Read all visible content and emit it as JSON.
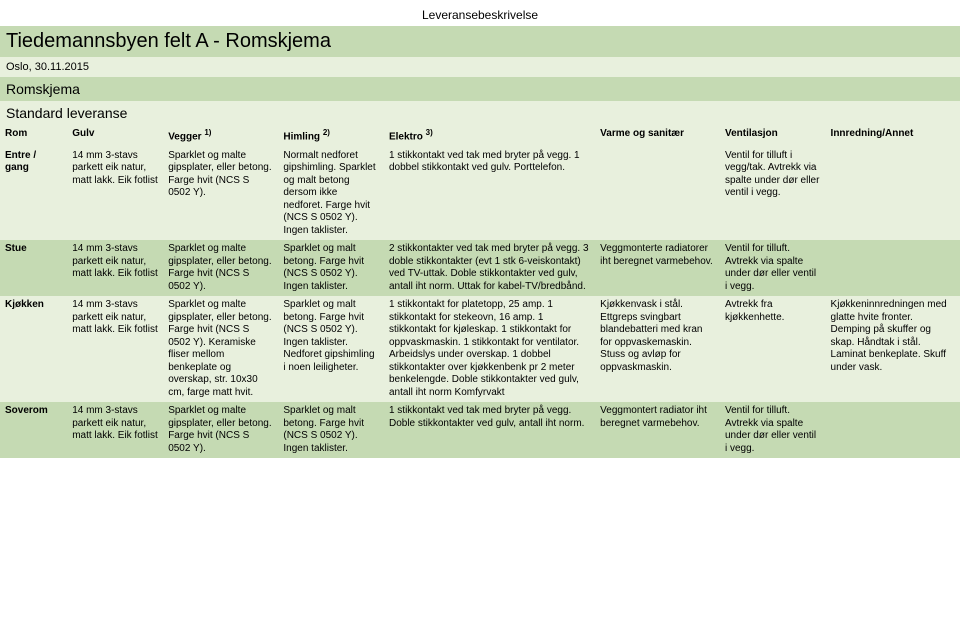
{
  "header_center": "Leveransebeskrivelse",
  "title_bar": "Tiedemannsbyen felt A   -   Romskjema",
  "date_bar": "Oslo, 30.11.2015",
  "section_bar": "Romskjema",
  "standard": "Standard leveranse",
  "columns": {
    "rom": "Rom",
    "gulv": "Gulv",
    "vegger": "Vegger",
    "vegger_sup": "1)",
    "himling": "Himling",
    "himling_sup": "2)",
    "elektro": "Elektro",
    "elektro_sup": "3)",
    "varme": "Varme og sanitær",
    "vent": "Ventilasjon",
    "innred": "Innredning/Annet"
  },
  "rows": [
    {
      "rom": "Entre / gang",
      "gulv": "14 mm 3-stavs parkett eik natur, matt lakk. Eik fotlist",
      "vegger": "Sparklet og malte gipsplater, eller betong. Farge hvit (NCS S 0502 Y).",
      "himling": "Normalt nedforet gipshimling. Sparklet og malt betong dersom ikke nedforet. Farge hvit (NCS S 0502 Y). Ingen taklister.",
      "elektro": "1 stikkontakt ved tak med bryter på vegg. 1 dobbel stikkontakt ved gulv. Porttelefon.",
      "varme": "",
      "vent": "Ventil for tilluft i vegg/tak. Avtrekk via spalte under dør eller ventil i vegg.",
      "innred": ""
    },
    {
      "rom": "Stue",
      "gulv": "14 mm 3-stavs parkett eik natur, matt lakk. Eik fotlist",
      "vegger": "Sparklet og malte gipsplater, eller betong. Farge hvit (NCS S 0502 Y).",
      "himling": "Sparklet og malt betong. Farge hvit (NCS S 0502 Y). Ingen taklister.",
      "elektro": "2 stikkontakter ved tak med bryter på vegg. 3 doble stikkontakter (evt 1 stk 6-veiskontakt) ved TV-uttak. Doble stikkontakter ved gulv, antall iht norm. Uttak for kabel-TV/bredbånd.",
      "varme": "Veggmonterte radiatorer iht beregnet varmebehov.",
      "vent": "Ventil for tilluft. Avtrekk via spalte under dør eller ventil i vegg.",
      "innred": ""
    },
    {
      "rom": "Kjøkken",
      "gulv": "14 mm 3-stavs parkett eik natur, matt lakk. Eik fotlist",
      "vegger": "Sparklet og malte gipsplater, eller betong. Farge hvit (NCS S 0502 Y). Keramiske fliser mellom benkeplate og overskap, str. 10x30 cm, farge matt hvit.",
      "himling": "Sparklet og malt betong. Farge hvit (NCS S 0502 Y). Ingen taklister. Nedforet gipshimling i noen leiligheter.",
      "elektro": "1 stikkontakt for platetopp, 25 amp. 1 stikkontakt for stekeovn, 16 amp. 1 stikkontakt for kjøleskap. 1 stikkontakt for oppvaskmaskin. 1 stikkontakt for ventilator. Arbeidslys under overskap. 1 dobbel stikkontakter over kjøkkenbenk pr 2 meter benkelengde. Doble stikkontakter ved gulv, antall iht norm Komfyrvakt",
      "varme": "Kjøkkenvask i stål. Ettgreps svingbart blandebatteri med kran for oppvaskemaskin. Stuss og avløp for oppvaskmaskin.",
      "vent": "Avtrekk fra kjøkkenhette.",
      "innred": "Kjøkkeninnredningen med glatte hvite fronter. Demping på skuffer og skap. Håndtak i stål. Laminat benkeplate. Skuff under vask."
    },
    {
      "rom": "Soverom",
      "gulv": "14 mm 3-stavs parkett eik natur, matt lakk. Eik fotlist",
      "vegger": "Sparklet og malte gipsplater, eller betong. Farge hvit (NCS S 0502 Y).",
      "himling": "Sparklet og malt betong. Farge hvit (NCS S 0502 Y). Ingen taklister.",
      "elektro": "1 stikkontakt ved tak med bryter på vegg. Doble stikkontakter ved gulv, antall iht norm.",
      "varme": "Veggmontert radiator iht beregnet varmebehov.",
      "vent": "Ventil for tilluft. Avtrekk via spalte under dør eller ventil i vegg.",
      "innred": ""
    }
  ],
  "style": {
    "color_green": "#c5dab3",
    "color_light": "#e8f0dd",
    "color_text": "#000000",
    "font_family": "Arial"
  }
}
